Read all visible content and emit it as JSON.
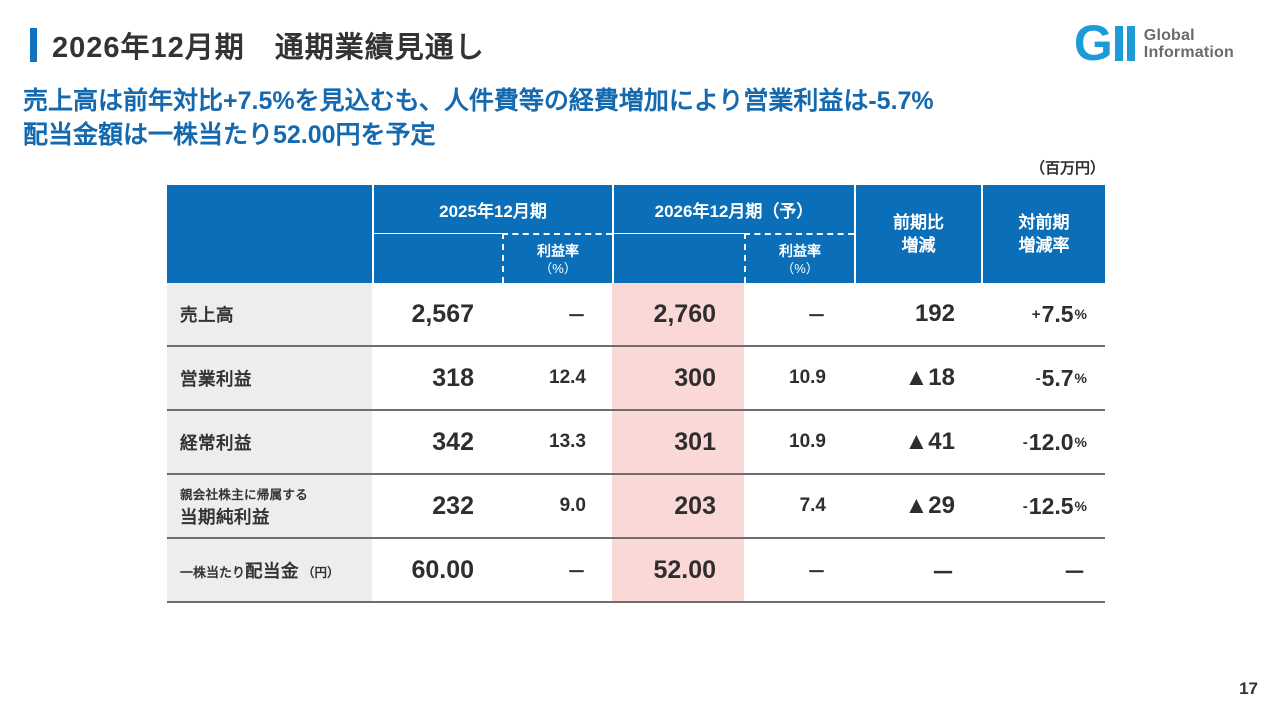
{
  "slide": {
    "title": "2026年12月期　通期業績見通し",
    "subtitle_line1": "売上高は前年対比+7.5%を見込むも、人件費等の経費増加により営業利益は-5.7%",
    "subtitle_line2": "配当金額は一株当たり52.00円を予定",
    "unit_note": "（百万円）",
    "page_number": "17"
  },
  "logo": {
    "mark": "G",
    "name_line1": "Global",
    "name_line2": "Information",
    "brand_blue": "#1E9BD7",
    "text_gray": "#6A6A6F"
  },
  "colors": {
    "header_blue": "#0A6FB8",
    "accent_blue": "#1272BE",
    "subtitle_blue": "#1469AF",
    "forecast_pink": "#F9D8D5",
    "label_gray": "#EDEDED",
    "row_line_gray": "#6E6E6E"
  },
  "table": {
    "headers": {
      "fy2025": "2025年12月期",
      "fy2026": "2026年12月期（予）",
      "margin_label": "利益率",
      "margin_unit": "（%）",
      "diff_line1": "前期比",
      "diff_line2": "増減",
      "pct_line1": "対前期",
      "pct_line2": "増減率"
    },
    "rows": [
      {
        "label": "売上高",
        "v2025": "2,567",
        "r2025": "－",
        "v2026": "2,760",
        "r2026": "－",
        "diff": "192",
        "pct_sign": "+",
        "pct": "7.5",
        "pct_unit": "%"
      },
      {
        "label": "営業利益",
        "v2025": "318",
        "r2025": "12.4",
        "v2026": "300",
        "r2026": "10.9",
        "diff": "▲18",
        "pct_sign": "-",
        "pct": "5.7",
        "pct_unit": "%"
      },
      {
        "label": "経常利益",
        "v2025": "342",
        "r2025": "13.3",
        "v2026": "301",
        "r2026": "10.9",
        "diff": "▲41",
        "pct_sign": "-",
        "pct": "12.0",
        "pct_unit": "%"
      },
      {
        "label_sub": "親会社株主に帰属する",
        "label": "当期純利益",
        "v2025": "232",
        "r2025": "9.0",
        "v2026": "203",
        "r2026": "7.4",
        "diff": "▲29",
        "pct_sign": "-",
        "pct": "12.5",
        "pct_unit": "%"
      },
      {
        "label_pre": "一株当たり",
        "label": "配当金",
        "label_post": "（円）",
        "v2025": "60.00",
        "r2025": "－",
        "v2026": "52.00",
        "r2026": "－",
        "diff": "－",
        "pct_sign": "",
        "pct": "－",
        "pct_unit": ""
      }
    ]
  }
}
